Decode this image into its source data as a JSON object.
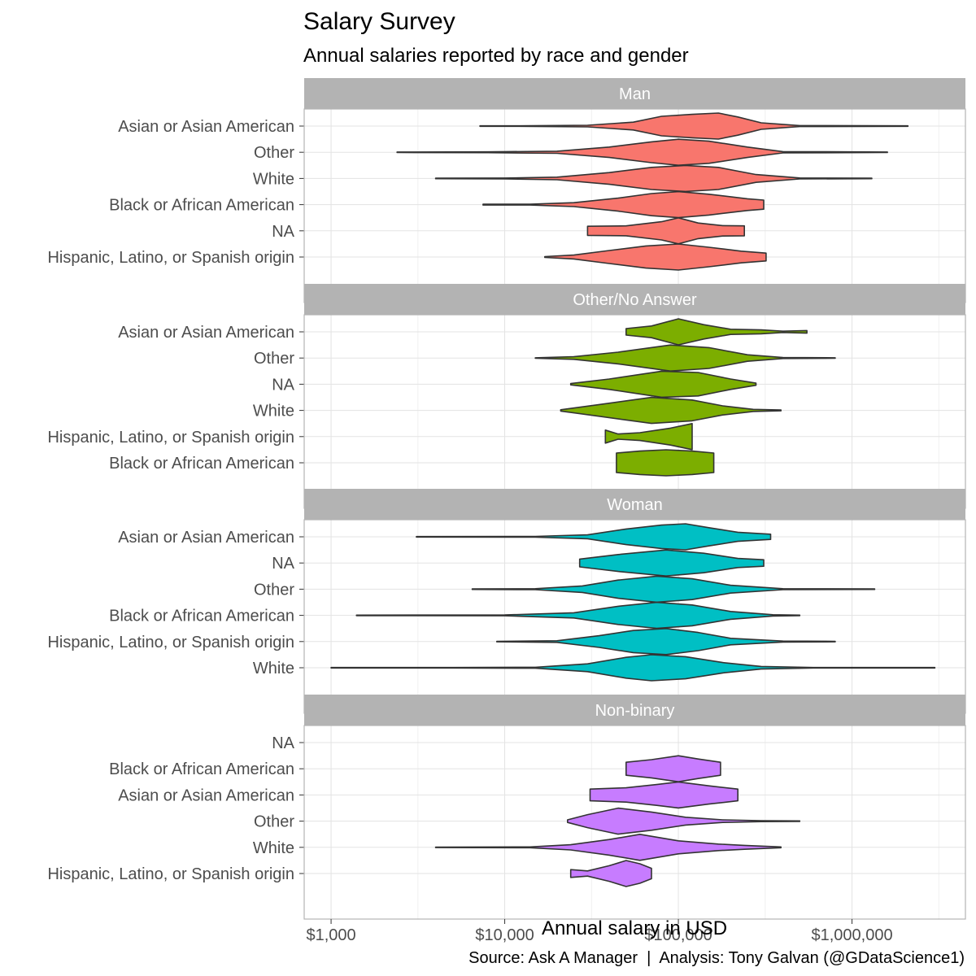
{
  "chart_data": {
    "type": "violin",
    "title": "Salary Survey",
    "subtitle": "Annual salaries reported by race and gender",
    "xlabel": "Annual salary in USD",
    "caption": "Source: Ask A Manager  |  Analysis: Tony Galvan (@GDataScience1)",
    "x_scale": "log10",
    "xlim": [
      700,
      4500000
    ],
    "x_ticks": [
      1000,
      10000,
      100000,
      1000000
    ],
    "x_tick_labels": [
      "$1,000",
      "$10,000",
      "$100,000",
      "$1,000,000"
    ],
    "grid": true,
    "facets": [
      {
        "name": "Man",
        "color": "#F8766D",
        "violins": [
          {
            "label": "Asian or Asian American",
            "min": 7200,
            "max": 2100000,
            "mode": 170000,
            "dens": [
              [
                7200,
                0.02
              ],
              [
                12000,
                0.02
              ],
              [
                30000,
                0.06
              ],
              [
                55000,
                0.3
              ],
              [
                80000,
                0.75
              ],
              [
                120000,
                0.9
              ],
              [
                170000,
                1.0
              ],
              [
                220000,
                0.7
              ],
              [
                300000,
                0.25
              ],
              [
                500000,
                0.04
              ],
              [
                2100000,
                0.02
              ]
            ]
          },
          {
            "label": "Other",
            "min": 2400,
            "max": 1600000,
            "mode": 100000,
            "dens": [
              [
                2400,
                0.02
              ],
              [
                8000,
                0.03
              ],
              [
                20000,
                0.08
              ],
              [
                40000,
                0.4
              ],
              [
                70000,
                0.8
              ],
              [
                100000,
                1.0
              ],
              [
                150000,
                0.85
              ],
              [
                250000,
                0.4
              ],
              [
                400000,
                0.05
              ],
              [
                1600000,
                0.02
              ]
            ]
          },
          {
            "label": "White",
            "min": 4000,
            "max": 1300000,
            "mode": 110000,
            "dens": [
              [
                4000,
                0.02
              ],
              [
                10000,
                0.03
              ],
              [
                20000,
                0.1
              ],
              [
                40000,
                0.45
              ],
              [
                70000,
                0.85
              ],
              [
                110000,
                1.0
              ],
              [
                170000,
                0.85
              ],
              [
                280000,
                0.3
              ],
              [
                500000,
                0.04
              ],
              [
                1300000,
                0.02
              ]
            ]
          },
          {
            "label": "Black or African American",
            "min": 7500,
            "max": 310000,
            "mode": 100000,
            "dens": [
              [
                7500,
                0.03
              ],
              [
                14000,
                0.03
              ],
              [
                25000,
                0.15
              ],
              [
                45000,
                0.5
              ],
              [
                70000,
                0.85
              ],
              [
                100000,
                1.0
              ],
              [
                150000,
                0.8
              ],
              [
                250000,
                0.45
              ],
              [
                310000,
                0.35
              ]
            ]
          },
          {
            "label": "NA",
            "min": 30000,
            "max": 240000,
            "mode": 100000,
            "dens": [
              [
                30000,
                0.35
              ],
              [
                50000,
                0.38
              ],
              [
                80000,
                0.7
              ],
              [
                100000,
                1.0
              ],
              [
                130000,
                0.6
              ],
              [
                180000,
                0.4
              ],
              [
                240000,
                0.38
              ]
            ]
          },
          {
            "label": "Hispanic, Latino, or Spanish origin",
            "min": 17000,
            "max": 320000,
            "mode": 100000,
            "dens": [
              [
                17000,
                0.03
              ],
              [
                25000,
                0.15
              ],
              [
                40000,
                0.5
              ],
              [
                65000,
                0.85
              ],
              [
                100000,
                1.0
              ],
              [
                150000,
                0.75
              ],
              [
                230000,
                0.45
              ],
              [
                320000,
                0.3
              ]
            ]
          }
        ]
      },
      {
        "name": "Other/No Answer",
        "color": "#7CAE00",
        "violins": [
          {
            "label": "Asian or Asian American",
            "min": 50000,
            "max": 550000,
            "mode": 100000,
            "dens": [
              [
                50000,
                0.25
              ],
              [
                70000,
                0.45
              ],
              [
                100000,
                1.0
              ],
              [
                140000,
                0.55
              ],
              [
                200000,
                0.2
              ],
              [
                300000,
                0.15
              ],
              [
                400000,
                0.05
              ],
              [
                550000,
                0.1
              ]
            ]
          },
          {
            "label": "Other",
            "min": 15000,
            "max": 800000,
            "mode": 90000,
            "dens": [
              [
                15000,
                0.02
              ],
              [
                25000,
                0.1
              ],
              [
                45000,
                0.45
              ],
              [
                90000,
                1.0
              ],
              [
                150000,
                0.8
              ],
              [
                250000,
                0.25
              ],
              [
                400000,
                0.04
              ],
              [
                800000,
                0.02
              ]
            ]
          },
          {
            "label": "NA",
            "min": 24000,
            "max": 280000,
            "mode": 80000,
            "dens": [
              [
                24000,
                0.05
              ],
              [
                40000,
                0.4
              ],
              [
                80000,
                1.0
              ],
              [
                130000,
                0.9
              ],
              [
                200000,
                0.4
              ],
              [
                280000,
                0.08
              ]
            ]
          },
          {
            "label": "White",
            "min": 21000,
            "max": 390000,
            "mode": 70000,
            "dens": [
              [
                21000,
                0.05
              ],
              [
                35000,
                0.45
              ],
              [
                70000,
                1.0
              ],
              [
                120000,
                0.8
              ],
              [
                180000,
                0.35
              ],
              [
                270000,
                0.08
              ],
              [
                390000,
                0.03
              ]
            ]
          },
          {
            "label": "Hispanic, Latino, or Spanish origin",
            "min": 38000,
            "max": 120000,
            "mode": 120000,
            "dens": [
              [
                38000,
                0.5
              ],
              [
                45000,
                0.2
              ],
              [
                60000,
                0.3
              ],
              [
                90000,
                0.65
              ],
              [
                120000,
                1.0
              ]
            ]
          },
          {
            "label": "Black or African American",
            "min": 44000,
            "max": 160000,
            "mode": 85000,
            "dens": [
              [
                44000,
                0.75
              ],
              [
                60000,
                0.9
              ],
              [
                85000,
                1.0
              ],
              [
                120000,
                0.9
              ],
              [
                160000,
                0.75
              ]
            ]
          }
        ]
      },
      {
        "name": "Woman",
        "color": "#00BFC4",
        "violins": [
          {
            "label": "Asian or Asian American",
            "min": 3100,
            "max": 340000,
            "mode": 110000,
            "dens": [
              [
                3100,
                0.02
              ],
              [
                15000,
                0.03
              ],
              [
                30000,
                0.15
              ],
              [
                50000,
                0.6
              ],
              [
                80000,
                0.9
              ],
              [
                110000,
                1.0
              ],
              [
                150000,
                0.7
              ],
              [
                220000,
                0.35
              ],
              [
                340000,
                0.2
              ]
            ]
          },
          {
            "label": "NA",
            "min": 27000,
            "max": 310000,
            "mode": 85000,
            "dens": [
              [
                27000,
                0.3
              ],
              [
                45000,
                0.65
              ],
              [
                85000,
                1.0
              ],
              [
                140000,
                0.75
              ],
              [
                220000,
                0.35
              ],
              [
                310000,
                0.25
              ]
            ]
          },
          {
            "label": "Other",
            "min": 6500,
            "max": 1350000,
            "mode": 75000,
            "dens": [
              [
                6500,
                0.02
              ],
              [
                15000,
                0.04
              ],
              [
                28000,
                0.25
              ],
              [
                45000,
                0.7
              ],
              [
                75000,
                1.0
              ],
              [
                120000,
                0.8
              ],
              [
                200000,
                0.3
              ],
              [
                400000,
                0.04
              ],
              [
                1350000,
                0.02
              ]
            ]
          },
          {
            "label": "Black or African American",
            "min": 1400,
            "max": 500000,
            "mode": 75000,
            "dens": [
              [
                1400,
                0.02
              ],
              [
                10000,
                0.03
              ],
              [
                25000,
                0.2
              ],
              [
                45000,
                0.7
              ],
              [
                75000,
                1.0
              ],
              [
                120000,
                0.8
              ],
              [
                200000,
                0.3
              ],
              [
                350000,
                0.05
              ],
              [
                500000,
                0.02
              ]
            ]
          },
          {
            "label": "Hispanic, Latino, or Spanish origin",
            "min": 9000,
            "max": 800000,
            "mode": 85000,
            "dens": [
              [
                9000,
                0.02
              ],
              [
                20000,
                0.06
              ],
              [
                35000,
                0.45
              ],
              [
                55000,
                0.85
              ],
              [
                85000,
                1.0
              ],
              [
                130000,
                0.7
              ],
              [
                200000,
                0.25
              ],
              [
                400000,
                0.04
              ],
              [
                800000,
                0.02
              ]
            ]
          },
          {
            "label": "White",
            "min": 1000,
            "max": 3000000,
            "mode": 70000,
            "dens": [
              [
                1000,
                0.02
              ],
              [
                5000,
                0.02
              ],
              [
                15000,
                0.04
              ],
              [
                30000,
                0.3
              ],
              [
                50000,
                0.8
              ],
              [
                70000,
                1.0
              ],
              [
                110000,
                0.85
              ],
              [
                180000,
                0.4
              ],
              [
                300000,
                0.1
              ],
              [
                600000,
                0.02
              ],
              [
                3000000,
                0.02
              ]
            ]
          }
        ]
      },
      {
        "name": "Non-binary",
        "color": "#C77CFF",
        "violins": [
          {
            "label": "NA",
            "min": null,
            "max": null,
            "mode": null,
            "dens": []
          },
          {
            "label": "Black or African American",
            "min": 50000,
            "max": 175000,
            "mode": 100000,
            "dens": [
              [
                50000,
                0.5
              ],
              [
                70000,
                0.7
              ],
              [
                100000,
                1.0
              ],
              [
                130000,
                0.75
              ],
              [
                175000,
                0.5
              ]
            ]
          },
          {
            "label": "Asian or Asian American",
            "min": 31000,
            "max": 220000,
            "mode": 100000,
            "dens": [
              [
                31000,
                0.45
              ],
              [
                50000,
                0.55
              ],
              [
                75000,
                0.8
              ],
              [
                100000,
                1.0
              ],
              [
                150000,
                0.7
              ],
              [
                220000,
                0.45
              ]
            ]
          },
          {
            "label": "Other",
            "min": 23000,
            "max": 500000,
            "mode": 45000,
            "dens": [
              [
                23000,
                0.1
              ],
              [
                30000,
                0.5
              ],
              [
                45000,
                1.0
              ],
              [
                70000,
                0.7
              ],
              [
                110000,
                0.3
              ],
              [
                180000,
                0.1
              ],
              [
                300000,
                0.04
              ],
              [
                500000,
                0.02
              ]
            ]
          },
          {
            "label": "White",
            "min": 4000,
            "max": 390000,
            "mode": 60000,
            "dens": [
              [
                4000,
                0.02
              ],
              [
                14000,
                0.03
              ],
              [
                24000,
                0.2
              ],
              [
                40000,
                0.6
              ],
              [
                60000,
                1.0
              ],
              [
                100000,
                0.5
              ],
              [
                170000,
                0.25
              ],
              [
                240000,
                0.15
              ],
              [
                390000,
                0.03
              ]
            ]
          },
          {
            "label": "Hispanic, Latino, or Spanish origin",
            "min": 24000,
            "max": 70000,
            "mode": 50000,
            "dens": [
              [
                24000,
                0.3
              ],
              [
                30000,
                0.2
              ],
              [
                40000,
                0.6
              ],
              [
                50000,
                1.0
              ],
              [
                60000,
                0.75
              ],
              [
                70000,
                0.4
              ]
            ]
          }
        ]
      }
    ]
  }
}
